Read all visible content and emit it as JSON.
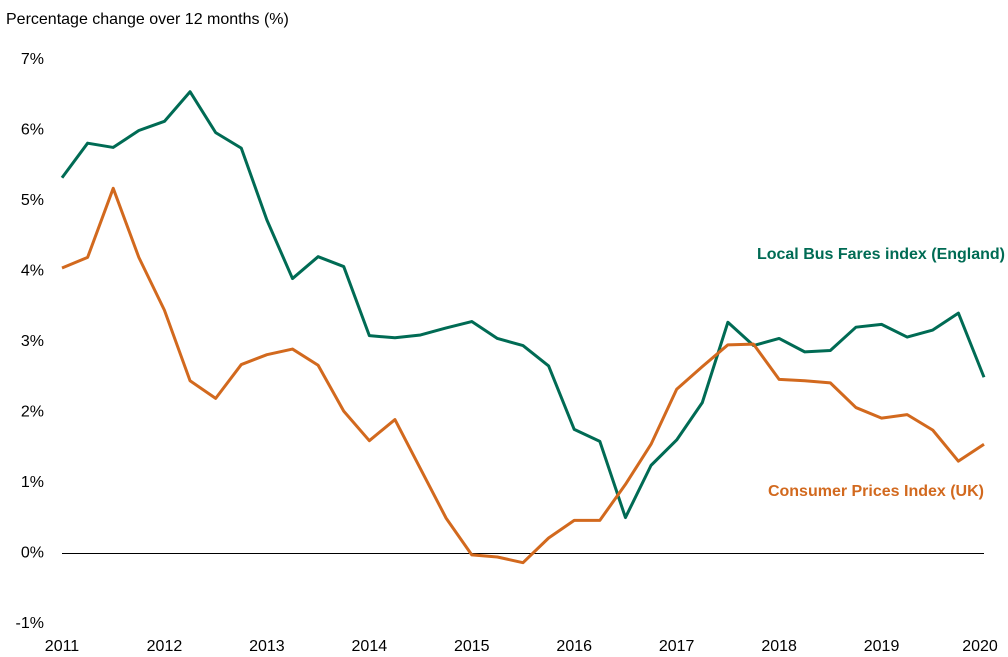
{
  "chart_data": {
    "type": "line",
    "ylabel": "Percentage change over 12 months (%)",
    "x": [
      2011,
      2011.25,
      2011.5,
      2011.75,
      2012,
      2012.25,
      2012.5,
      2012.75,
      2013,
      2013.25,
      2013.5,
      2013.75,
      2014,
      2014.25,
      2014.5,
      2014.75,
      2015,
      2015.25,
      2015.5,
      2015.75,
      2016,
      2016.25,
      2016.5,
      2016.75,
      2017,
      2017.25,
      2017.5,
      2017.75,
      2018,
      2018.25,
      2018.5,
      2018.75,
      2019,
      2019.25,
      2019.5,
      2019.75,
      2020
    ],
    "series": [
      {
        "name": "Local Bus Fares index (England)",
        "color": "#006b54",
        "values": [
          5.33,
          5.82,
          5.76,
          6.0,
          6.13,
          6.55,
          5.97,
          5.75,
          4.73,
          3.9,
          4.21,
          4.07,
          3.09,
          3.06,
          3.1,
          3.2,
          3.29,
          3.05,
          2.95,
          2.66,
          1.76,
          1.59,
          0.51,
          1.25,
          1.61,
          2.14,
          3.28,
          2.95,
          3.05,
          2.86,
          2.88,
          3.21,
          3.25,
          3.07,
          3.17,
          3.41,
          2.5
        ]
      },
      {
        "name": "Consumer Prices Index (UK)",
        "color": "#d2691e",
        "values": [
          4.05,
          4.2,
          5.18,
          4.2,
          3.45,
          2.45,
          2.2,
          2.68,
          2.82,
          2.9,
          2.67,
          2.02,
          1.6,
          1.9,
          1.2,
          0.5,
          -0.02,
          -0.05,
          -0.13,
          0.22,
          0.47,
          0.47,
          0.98,
          1.55,
          2.33,
          2.65,
          2.96,
          2.97,
          2.47,
          2.45,
          2.42,
          2.07,
          1.92,
          1.97,
          1.75,
          1.31,
          1.55
        ]
      }
    ],
    "xlim": [
      2011,
      2020
    ],
    "xticks": [
      2011,
      2012,
      2013,
      2014,
      2015,
      2016,
      2017,
      2018,
      2019,
      2020
    ],
    "ylim": [
      -1,
      7
    ],
    "yticks": [
      {
        "value": -1,
        "label": "-1%"
      },
      {
        "value": 0,
        "label": "0%"
      },
      {
        "value": 1,
        "label": "1%"
      },
      {
        "value": 2,
        "label": "2%"
      },
      {
        "value": 3,
        "label": "3%"
      },
      {
        "value": 4,
        "label": "4%"
      },
      {
        "value": 5,
        "label": "5%"
      },
      {
        "value": 6,
        "label": "6%"
      },
      {
        "value": 7,
        "label": "7%"
      }
    ],
    "grid": false
  }
}
